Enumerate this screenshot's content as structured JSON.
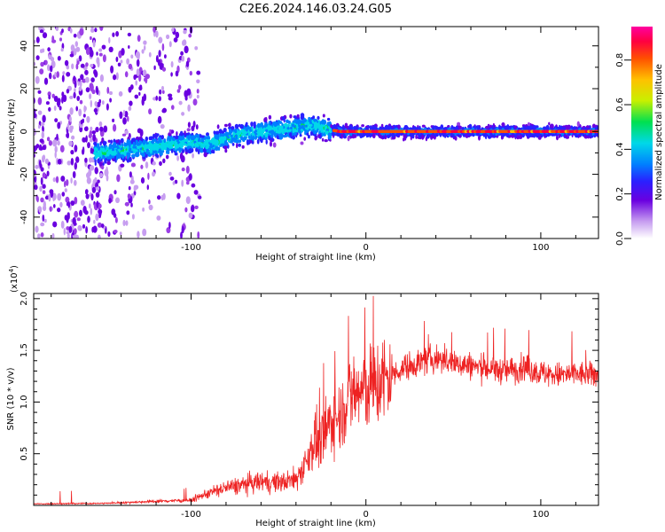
{
  "title": "C2E6.2024.146.03.24.G05",
  "colors": {
    "snr_line": "#ee2222",
    "rainbow": [
      "#e8ddf8",
      "#c79ef0",
      "#9b3fe6",
      "#6a00e0",
      "#2a20ff",
      "#0080ff",
      "#00d8e8",
      "#00e050",
      "#c8f000",
      "#ffc000",
      "#ff5000",
      "#ff0040",
      "#ff00a0"
    ]
  },
  "chart_data": [
    {
      "type": "scatter",
      "xlabel": "Height of straight line (km)",
      "ylabel": "Frequency (Hz)",
      "xlim": [
        -190,
        133
      ],
      "ylim": [
        -50,
        49
      ],
      "xticks": [
        -100,
        0,
        100
      ],
      "yticks": [
        -40,
        -20,
        0,
        20,
        40
      ],
      "grid": false,
      "colorbar": {
        "label": "Normalized spectral amplitude",
        "range": [
          0,
          0.95
        ],
        "ticks": [
          "0.0",
          "0.2",
          "0.4",
          "0.6",
          "0.8"
        ]
      },
      "ridge": {
        "x": [
          -150,
          -130,
          -110,
          -100,
          -90,
          -80,
          -70,
          -60,
          -50,
          -40,
          -30,
          -22,
          -15,
          0,
          133
        ],
        "frequency": [
          -10,
          -8,
          -6,
          -5,
          -6,
          -3,
          -1,
          0,
          1,
          2,
          3,
          1,
          0,
          0,
          0
        ]
      }
    },
    {
      "type": "line",
      "xlabel": "Height of straight line (km)",
      "ylabel": "SNR (10 * v/v)",
      "y_multiplier": "(x10",
      "y_multiplier_exp": "4",
      "y_multiplier_close": ")",
      "xlim": [
        -190,
        133
      ],
      "ylim": [
        0,
        20500
      ],
      "xticks": [
        -100,
        0,
        100
      ],
      "yticks": [
        {
          "value": 5000,
          "label": "0.5"
        },
        {
          "value": 10000,
          "label": "1.0"
        },
        {
          "value": 15000,
          "label": "1.5"
        },
        {
          "value": 20000,
          "label": "2.0"
        }
      ],
      "grid": false,
      "series": [
        {
          "x": [
            -190,
            -150,
            -120,
            -100,
            -90,
            -80,
            -70,
            -60,
            -50,
            -40,
            -35,
            -30,
            -25,
            -20,
            -15,
            -10,
            0,
            10,
            20,
            30,
            40,
            50,
            60,
            70,
            80,
            90,
            100,
            110,
            120,
            133
          ],
          "values": [
            150,
            200,
            400,
            500,
            1200,
            1700,
            2000,
            2300,
            2200,
            2500,
            4000,
            6000,
            6200,
            8200,
            8700,
            10500,
            11200,
            12000,
            13200,
            13800,
            14200,
            13800,
            13500,
            13200,
            13000,
            13300,
            12800,
            12600,
            12700,
            12600
          ]
        }
      ]
    }
  ]
}
